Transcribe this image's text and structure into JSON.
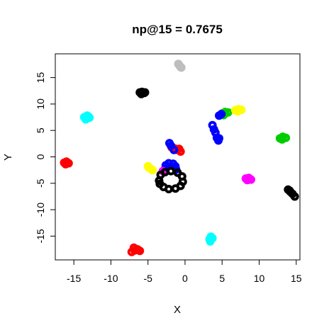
{
  "chart_data": {
    "type": "scatter",
    "title": "np@15 = 0.7675",
    "xlabel": "X",
    "ylabel": "Y",
    "xlim": [
      -17.5,
      15.5
    ],
    "ylim": [
      -19.5,
      19.5
    ],
    "xticks": [
      -15,
      -10,
      -5,
      0,
      5,
      10,
      15
    ],
    "yticks": [
      -15,
      -10,
      -5,
      0,
      5,
      10,
      15
    ],
    "xtick_labels": [
      "-15",
      "-10",
      "-5",
      "0",
      "5",
      "10",
      "15"
    ],
    "ytick_labels": [
      "-15",
      "-10",
      "-5",
      "0",
      "5",
      "10",
      "15"
    ],
    "grid": false,
    "legend": "none",
    "series": [
      {
        "color": "#BEBEBE",
        "points": [
          [
            -0.9,
            17.6
          ],
          [
            -0.7,
            17.2
          ],
          [
            -0.5,
            16.9
          ],
          [
            -0.6,
            17.0
          ],
          [
            -0.8,
            17.4
          ]
        ]
      },
      {
        "color": "#000000",
        "points": [
          [
            -6.1,
            12.2
          ],
          [
            -5.8,
            12.3
          ],
          [
            -5.5,
            12.1
          ],
          [
            -5.9,
            11.9
          ],
          [
            -5.4,
            12.2
          ]
        ]
      },
      {
        "color": "#00FFFF",
        "points": [
          [
            -13.6,
            7.5
          ],
          [
            -13.2,
            7.8
          ],
          [
            -12.9,
            7.4
          ],
          [
            -13.4,
            7.1
          ],
          [
            -13.0,
            7.6
          ]
        ]
      },
      {
        "color": "#00CD00",
        "points": [
          [
            5.0,
            8.2
          ],
          [
            5.4,
            8.5
          ],
          [
            5.8,
            8.4
          ],
          [
            5.2,
            7.9
          ]
        ]
      },
      {
        "color": "#FFFF00",
        "points": [
          [
            6.8,
            8.8
          ],
          [
            7.2,
            9.0
          ],
          [
            7.6,
            8.9
          ],
          [
            7.1,
            8.6
          ]
        ]
      },
      {
        "color": "#0000FF",
        "points": [
          [
            4.6,
            7.8
          ],
          [
            4.9,
            8.1
          ],
          [
            3.7,
            6.0
          ],
          [
            3.9,
            5.2
          ],
          [
            4.1,
            4.6
          ],
          [
            4.3,
            3.6
          ],
          [
            4.5,
            3.1
          ],
          [
            4.6,
            3.5
          ]
        ]
      },
      {
        "color": "#00CD00",
        "points": [
          [
            12.8,
            3.5
          ],
          [
            13.2,
            3.8
          ],
          [
            13.6,
            3.6
          ],
          [
            13.1,
            3.3
          ]
        ]
      },
      {
        "color": "#FF0000",
        "points": [
          [
            -1.8,
            1.8
          ],
          [
            -1.4,
            1.6
          ],
          [
            -1.0,
            1.3
          ],
          [
            -0.6,
            1.0
          ],
          [
            -0.8,
            1.5
          ]
        ]
      },
      {
        "color": "#0000FF",
        "points": [
          [
            -2.1,
            2.6
          ],
          [
            -1.9,
            2.1
          ],
          [
            -1.5,
            1.3
          ]
        ]
      },
      {
        "color": "#FF0000",
        "points": [
          [
            -16.3,
            -1.1
          ],
          [
            -16.0,
            -0.9
          ],
          [
            -15.7,
            -1.2
          ],
          [
            -16.1,
            -1.4
          ]
        ]
      },
      {
        "color": "#FFFF00",
        "points": [
          [
            -5.0,
            -1.8
          ],
          [
            -4.7,
            -2.2
          ],
          [
            -4.4,
            -2.5
          ],
          [
            -4.9,
            -2.0
          ]
        ]
      },
      {
        "color": "#0000FF",
        "points": [
          [
            -2.7,
            -2.3
          ],
          [
            -2.6,
            -1.6
          ],
          [
            -2.2,
            -1.2
          ],
          [
            -1.6,
            -1.3
          ],
          [
            -1.3,
            -1.8
          ],
          [
            -1.2,
            -2.4
          ]
        ]
      },
      {
        "color": "#FF00FF",
        "points": [
          [
            -3.0,
            -2.7
          ]
        ]
      },
      {
        "color": "#FF00FF",
        "points": [
          [
            8.2,
            -4.1
          ],
          [
            8.6,
            -4.0
          ],
          [
            8.9,
            -4.3
          ],
          [
            8.4,
            -4.4
          ]
        ]
      },
      {
        "color": "#000000",
        "points": [
          [
            -3.5,
            -4.5
          ],
          [
            -3.3,
            -3.4
          ],
          [
            -2.7,
            -2.9
          ],
          [
            -1.9,
            -2.7
          ],
          [
            -1.0,
            -3.0
          ],
          [
            -0.4,
            -3.7
          ],
          [
            -0.3,
            -4.7
          ],
          [
            -0.6,
            -5.5
          ],
          [
            -1.3,
            -6.0
          ],
          [
            -2.2,
            -6.1
          ],
          [
            -2.9,
            -5.7
          ],
          [
            -3.4,
            -5.1
          ]
        ]
      },
      {
        "color": "#000000",
        "points": [
          [
            13.9,
            -6.2
          ],
          [
            14.2,
            -6.6
          ],
          [
            14.5,
            -7.0
          ],
          [
            14.8,
            -7.5
          ],
          [
            14.1,
            -6.4
          ]
        ]
      },
      {
        "color": "#00FFFF",
        "points": [
          [
            3.5,
            -15.1
          ],
          [
            3.3,
            -15.6
          ],
          [
            3.4,
            -16.0
          ],
          [
            3.7,
            -15.4
          ]
        ]
      },
      {
        "color": "#FF0000",
        "points": [
          [
            -7.2,
            -18.0
          ],
          [
            -6.8,
            -17.7
          ],
          [
            -6.4,
            -17.5
          ],
          [
            -6.1,
            -17.8
          ],
          [
            -6.9,
            -17.2
          ]
        ]
      }
    ]
  }
}
